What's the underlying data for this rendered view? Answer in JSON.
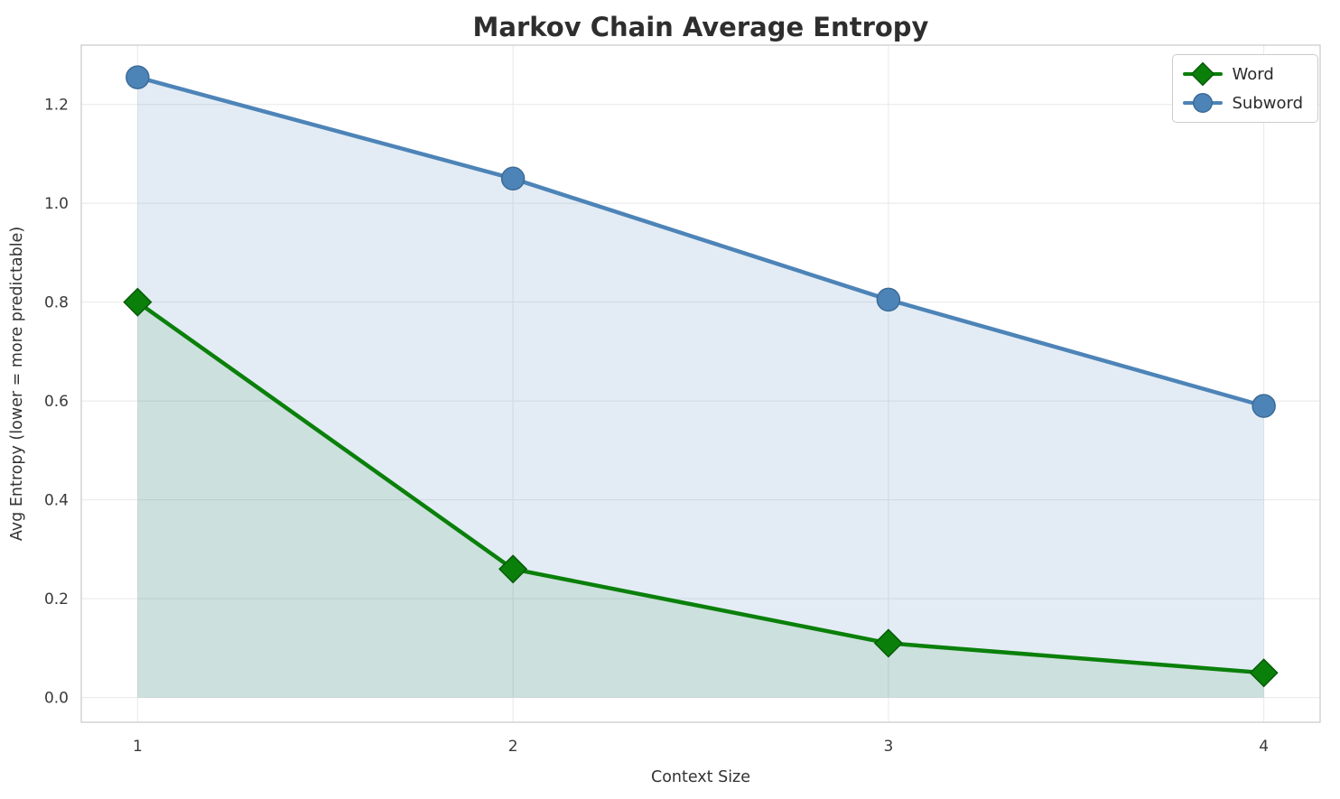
{
  "chart_data": {
    "type": "line",
    "title": "Markov Chain Average Entropy",
    "xlabel": "Context Size",
    "ylabel": "Avg Entropy (lower = more predictable)",
    "x": [
      1,
      2,
      3,
      4
    ],
    "series": [
      {
        "name": "Word",
        "values": [
          0.8,
          0.26,
          0.11,
          0.05
        ],
        "color": "#0a800a",
        "edge_color": "#075c07",
        "marker": "diamond",
        "fill_color": "rgba(10, 128, 10, 0.11)"
      },
      {
        "name": "Subword",
        "values": [
          1.255,
          1.05,
          0.805,
          0.59
        ],
        "color": "#4d84b8",
        "edge_color": "#3c6b96",
        "marker": "circle",
        "fill_color": "rgba(70, 130, 180, 0.15)"
      }
    ],
    "xlim": [
      0.85,
      4.15
    ],
    "ylim": [
      -0.05,
      1.32
    ],
    "xticks": [
      1,
      2,
      3,
      4
    ],
    "xtick_labels": [
      "1",
      "2",
      "3",
      "4"
    ],
    "yticks": [
      0,
      0.2,
      0.4,
      0.6,
      0.8,
      1.0,
      1.2
    ],
    "ytick_labels": [
      "0.0",
      "0.2",
      "0.4",
      "0.6",
      "0.8",
      "1.0",
      "1.2"
    ],
    "grid": true,
    "fill_baseline": 0,
    "legend_position": "top-right",
    "legend_entries": [
      "Word",
      "Subword"
    ]
  },
  "colors": {
    "grid": "#e8e8e8",
    "spine": "#cccccc",
    "tick_text": "#3a3a3a",
    "label_text": "#333333",
    "title_text": "#2e2e2e",
    "background": "#ffffff"
  }
}
